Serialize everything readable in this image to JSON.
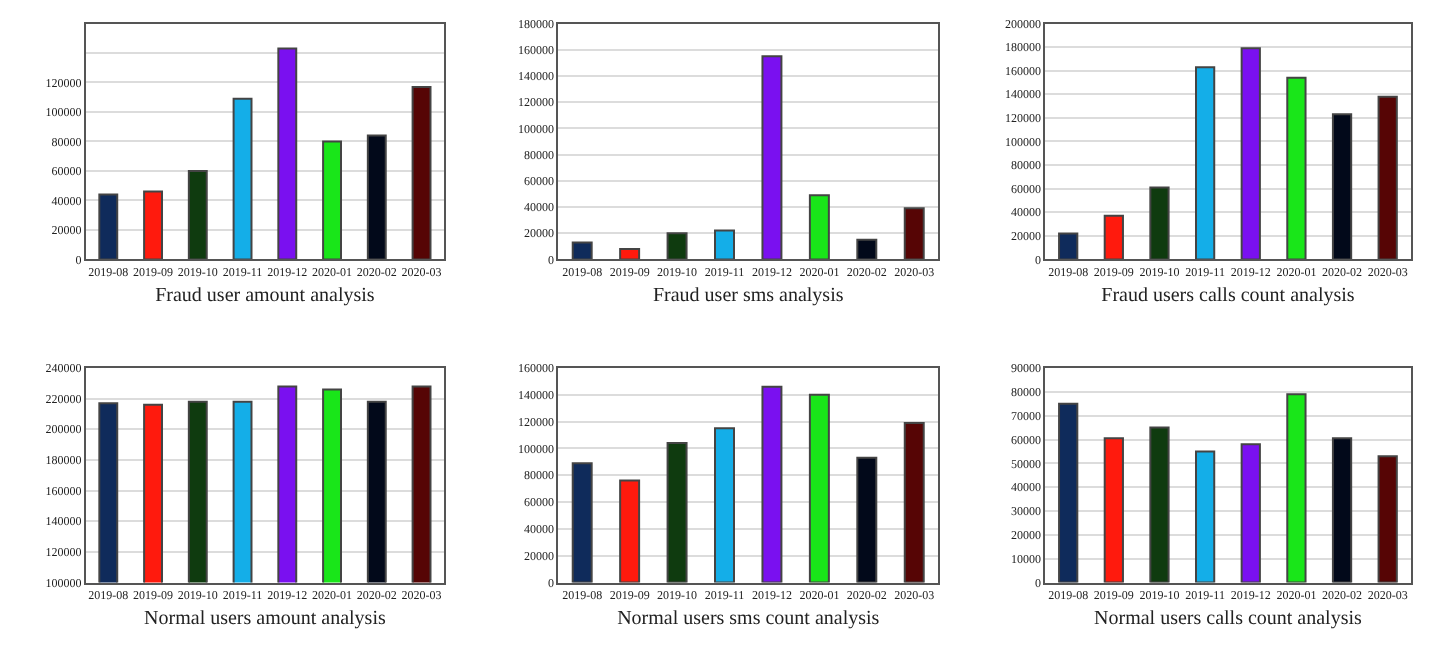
{
  "chart_data": [
    {
      "type": "bar",
      "xlabel": "Fraud user amount analysis",
      "categories": [
        "2019-08",
        "2019-09",
        "2019-10",
        "2019-11",
        "2019-12",
        "2020-01",
        "2020-02",
        "2020-03"
      ],
      "values": [
        44000,
        46000,
        60000,
        109000,
        143000,
        80000,
        84000,
        117000
      ],
      "colors": [
        "#0f2b5b",
        "#ff1a0d",
        "#0f3b0f",
        "#14aee8",
        "#7a10f0",
        "#19e619",
        "#02091a",
        "#560505"
      ],
      "ylim": [
        0,
        160000
      ],
      "yticks": [
        0,
        20000,
        40000,
        60000,
        80000,
        100000,
        120000,
        {
          "value": 140000,
          "label": null
        },
        {
          "value": 160000,
          "label": null
        }
      ],
      "grid": "y"
    },
    {
      "type": "bar",
      "xlabel": "Fraud user sms analysis",
      "categories": [
        "2019-08",
        "2019-09",
        "2019-10",
        "2019-11",
        "2019-12",
        "2020-01",
        "2020-02",
        "2020-03"
      ],
      "values": [
        13000,
        8000,
        20000,
        22000,
        155000,
        49000,
        15000,
        39000
      ],
      "colors": [
        "#0f2b5b",
        "#ff1a0d",
        "#0f3b0f",
        "#14aee8",
        "#7a10f0",
        "#19e619",
        "#02091a",
        "#560505"
      ],
      "ylim": [
        0,
        180000
      ],
      "yticks": [
        0,
        20000,
        40000,
        60000,
        80000,
        100000,
        120000,
        140000,
        160000,
        180000
      ],
      "grid": "y"
    },
    {
      "type": "bar",
      "xlabel": "Fraud users calls count analysis",
      "categories": [
        "2019-08",
        "2019-09",
        "2019-10",
        "2019-11",
        "2019-12",
        "2020-01",
        "2020-02",
        "2020-03"
      ],
      "values": [
        22000,
        37000,
        61000,
        163000,
        179000,
        154000,
        123000,
        138000
      ],
      "colors": [
        "#0f2b5b",
        "#ff1a0d",
        "#0f3b0f",
        "#14aee8",
        "#7a10f0",
        "#19e619",
        "#02091a",
        "#560505"
      ],
      "ylim": [
        0,
        200000
      ],
      "yticks": [
        0,
        20000,
        40000,
        60000,
        80000,
        100000,
        120000,
        140000,
        160000,
        180000,
        200000
      ],
      "grid": "y"
    },
    {
      "type": "bar",
      "xlabel": "Normal users amount analysis",
      "categories": [
        "2019-08",
        "2019-09",
        "2019-10",
        "2019-11",
        "2019-12",
        "2020-01",
        "2020-02",
        "2020-03"
      ],
      "values": [
        217000,
        216000,
        218000,
        218000,
        228000,
        226000,
        218000,
        228000
      ],
      "colors": [
        "#0f2b5b",
        "#ff1a0d",
        "#0f3b0f",
        "#14aee8",
        "#7a10f0",
        "#19e619",
        "#02091a",
        "#560505"
      ],
      "ylim": [
        100000,
        240000
      ],
      "yticks": [
        100000,
        120000,
        140000,
        160000,
        180000,
        200000,
        220000,
        240000
      ],
      "grid": "y"
    },
    {
      "type": "bar",
      "xlabel": "Normal users sms count analysis",
      "categories": [
        "2019-08",
        "2019-09",
        "2019-10",
        "2019-11",
        "2019-12",
        "2020-01",
        "2020-02",
        "2020-03"
      ],
      "values": [
        89000,
        76000,
        104000,
        115000,
        146000,
        140000,
        93000,
        119000
      ],
      "colors": [
        "#0f2b5b",
        "#ff1a0d",
        "#0f3b0f",
        "#14aee8",
        "#7a10f0",
        "#19e619",
        "#02091a",
        "#560505"
      ],
      "ylim": [
        0,
        160000
      ],
      "yticks": [
        0,
        20000,
        40000,
        60000,
        80000,
        100000,
        120000,
        140000,
        160000
      ],
      "grid": "y"
    },
    {
      "type": "bar",
      "xlabel": "Normal users calls count analysis",
      "categories": [
        "2019-08",
        "2019-09",
        "2019-10",
        "2019-11",
        "2019-12",
        "2020-01",
        "2020-02",
        "2020-03"
      ],
      "values": [
        75000,
        60500,
        65000,
        55000,
        58000,
        79000,
        60500,
        53000
      ],
      "colors": [
        "#0f2b5b",
        "#ff1a0d",
        "#0f3b0f",
        "#14aee8",
        "#7a10f0",
        "#19e619",
        "#02091a",
        "#560505"
      ],
      "ylim": [
        0,
        90000
      ],
      "yticks": [
        0,
        10000,
        20000,
        30000,
        40000,
        50000,
        60000,
        70000,
        80000,
        90000
      ],
      "grid": "y"
    }
  ]
}
